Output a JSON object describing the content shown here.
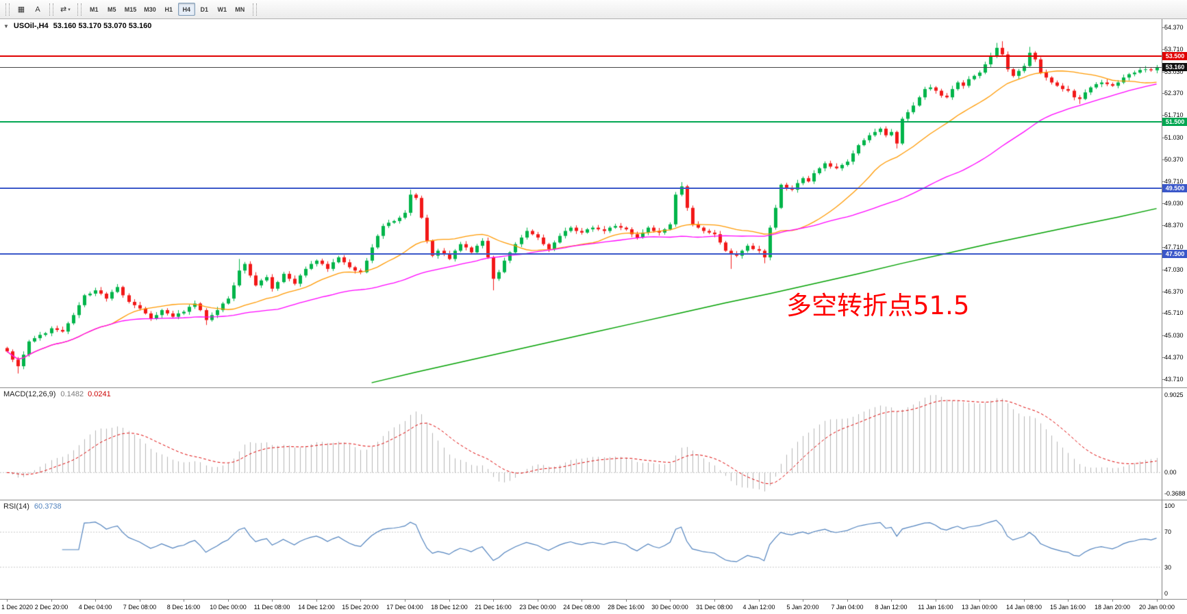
{
  "toolbar": {
    "tool_buttons": [
      {
        "glyph": "▦"
      },
      {
        "glyph": "A"
      },
      {
        "glyph": "⇄",
        "caret": "▾"
      }
    ],
    "timeframes": [
      "M1",
      "M5",
      "M15",
      "M30",
      "H1",
      "H4",
      "D1",
      "W1",
      "MN"
    ],
    "active_timeframe": "H4"
  },
  "chart_title": {
    "marker": "▼",
    "symbol": "USOil-,H4",
    "ohlc": "53.160 53.170 53.070 53.160"
  },
  "annotation": {
    "text": "多空转折点51.5",
    "color": "#ff0000"
  },
  "chart_data": {
    "type": "candlestick",
    "symbol": "USOil",
    "timeframe": "H4",
    "date_range": "1 Dec 2020 - 20 Jan 2021",
    "current_ohlc": {
      "open": 53.16,
      "high": 53.17,
      "low": 53.07,
      "close": 53.16
    },
    "price_axis_labels": [
      "54.370",
      "53.710",
      "53.030",
      "52.370",
      "51.710",
      "51.030",
      "50.370",
      "49.710",
      "49.030",
      "48.370",
      "47.710",
      "47.030",
      "46.370",
      "45.710",
      "45.030",
      "44.370",
      "43.710"
    ],
    "price_axis_values": [
      54.37,
      53.71,
      53.03,
      52.37,
      51.71,
      51.03,
      50.37,
      49.71,
      49.03,
      48.37,
      47.71,
      47.03,
      46.37,
      45.71,
      45.03,
      44.37,
      43.71
    ],
    "time_axis_labels": [
      "1 Dec 2020",
      "2 Dec 20:00",
      "4 Dec 04:00",
      "7 Dec 08:00",
      "8 Dec 16:00",
      "10 Dec 00:00",
      "11 Dec 08:00",
      "14 Dec 12:00",
      "15 Dec 20:00",
      "17 Dec 04:00",
      "18 Dec 12:00",
      "21 Dec 16:00",
      "23 Dec 00:00",
      "24 Dec 08:00",
      "28 Dec 16:00",
      "30 Dec 00:00",
      "31 Dec 08:00",
      "4 Jan 12:00",
      "5 Jan 20:00",
      "7 Jan 04:00",
      "8 Jan 12:00",
      "11 Jan 16:00",
      "13 Jan 00:00",
      "14 Jan 08:00",
      "15 Jan 16:00",
      "18 Jan 20:00",
      "20 Jan 00:00"
    ],
    "bars_per_time_label": 8,
    "first_open": 44.65,
    "closes": [
      44.55,
      44.3,
      44.1,
      44.45,
      44.85,
      44.95,
      45.05,
      45.1,
      45.25,
      45.2,
      45.15,
      45.4,
      45.65,
      45.95,
      46.25,
      46.3,
      46.4,
      46.3,
      46.15,
      46.35,
      46.5,
      46.25,
      46.05,
      45.95,
      45.85,
      45.7,
      45.55,
      45.65,
      45.8,
      45.7,
      45.6,
      45.7,
      45.75,
      45.9,
      46.0,
      45.8,
      45.5,
      45.65,
      45.8,
      46.0,
      46.15,
      46.55,
      47.0,
      47.2,
      46.85,
      46.55,
      46.7,
      46.8,
      46.45,
      46.65,
      46.9,
      46.75,
      46.6,
      46.85,
      47.05,
      47.2,
      47.3,
      47.2,
      47.05,
      47.25,
      47.4,
      47.25,
      47.1,
      47.0,
      46.95,
      47.3,
      47.7,
      48.05,
      48.35,
      48.45,
      48.5,
      48.6,
      48.75,
      49.3,
      49.2,
      48.6,
      47.9,
      47.45,
      47.6,
      47.5,
      47.35,
      47.6,
      47.8,
      47.7,
      47.55,
      47.75,
      47.9,
      47.4,
      46.75,
      46.95,
      47.3,
      47.55,
      47.8,
      48.0,
      48.2,
      48.1,
      48.0,
      47.8,
      47.65,
      47.85,
      48.05,
      48.2,
      48.3,
      48.2,
      48.15,
      48.25,
      48.3,
      48.25,
      48.2,
      48.3,
      48.35,
      48.3,
      48.25,
      48.1,
      48.0,
      48.15,
      48.3,
      48.2,
      48.15,
      48.25,
      48.4,
      49.3,
      49.55,
      48.9,
      48.4,
      48.3,
      48.2,
      48.15,
      48.1,
      47.85,
      47.6,
      47.5,
      47.45,
      47.6,
      47.75,
      47.65,
      47.6,
      47.4,
      48.3,
      48.9,
      49.6,
      49.5,
      49.45,
      49.65,
      49.8,
      49.7,
      49.95,
      50.1,
      50.25,
      50.15,
      50.1,
      50.2,
      50.3,
      50.55,
      50.8,
      50.95,
      51.1,
      51.2,
      51.3,
      51.1,
      51.2,
      50.85,
      51.6,
      51.8,
      52.0,
      52.25,
      52.5,
      52.55,
      52.45,
      52.3,
      52.25,
      52.5,
      52.7,
      52.6,
      52.8,
      52.9,
      53.0,
      53.25,
      53.5,
      53.75,
      53.55,
      53.1,
      52.9,
      53.05,
      53.2,
      53.6,
      53.4,
      53.0,
      52.85,
      52.7,
      52.6,
      52.5,
      52.45,
      52.25,
      52.2,
      52.4,
      52.55,
      52.65,
      52.7,
      52.65,
      52.6,
      52.7,
      52.85,
      52.95,
      53.0,
      53.08,
      53.1,
      53.07,
      53.16
    ],
    "wick_high_overrides": {
      "42": 47.35,
      "73": 49.45,
      "122": 49.68,
      "179": 53.9,
      "180": 53.95,
      "185": 53.78
    },
    "wick_low_overrides": {
      "2": 43.88,
      "36": 45.35,
      "88": 46.4,
      "131": 47.05,
      "137": 47.22,
      "161": 50.7,
      "194": 52.05
    },
    "candle_up_color": "#00b44a",
    "candle_down_color": "#f21818",
    "moving_averages": {
      "fast": {
        "period": 20,
        "color": "#ff9900"
      },
      "mid": {
        "period": 50,
        "color": "#ff00ff"
      },
      "slow": {
        "color": "#00a000",
        "points": [
          [
            66,
            43.6
          ],
          [
            74,
            43.92
          ],
          [
            82,
            44.22
          ],
          [
            90,
            44.52
          ],
          [
            98,
            44.82
          ],
          [
            106,
            45.12
          ],
          [
            114,
            45.42
          ],
          [
            122,
            45.72
          ],
          [
            130,
            46.02
          ],
          [
            138,
            46.3
          ],
          [
            146,
            46.6
          ],
          [
            154,
            46.9
          ],
          [
            162,
            47.22
          ],
          [
            170,
            47.52
          ],
          [
            178,
            47.82
          ],
          [
            186,
            48.1
          ],
          [
            194,
            48.38
          ],
          [
            201,
            48.62
          ],
          [
            208,
            48.88
          ]
        ]
      }
    },
    "levels": [
      {
        "price": 53.5,
        "label": "53.500",
        "color": "#e00000",
        "width": 2
      },
      {
        "price": 51.5,
        "label": "51.500",
        "color": "#00a651",
        "width": 2
      },
      {
        "price": 49.5,
        "label": "49.500",
        "color": "#3a57c9",
        "width": 2
      },
      {
        "price": 47.5,
        "label": "47.500",
        "color": "#3a57c9",
        "width": 2
      }
    ],
    "current_price": {
      "value": 53.16,
      "label": "53.160",
      "line_color": "#444444",
      "badge_color": "#111111"
    }
  },
  "macd": {
    "name": "MACD(12,26,9)",
    "value_main": "0.1482",
    "value_signal": "0.0241",
    "params": {
      "fast": 12,
      "slow": 26,
      "signal": 9
    },
    "axis_labels": [
      "0.9025",
      "0.00",
      "-0.3688"
    ],
    "histogram_color": "#b4b4b4",
    "signal_color": "#dd0000"
  },
  "rsi": {
    "name": "RSI(14)",
    "value": "60.3738",
    "period": 14,
    "axis_labels": [
      "100",
      "70",
      "30",
      "0"
    ],
    "axis_values": [
      100,
      70,
      30,
      0
    ],
    "level_lines": [
      70,
      30
    ],
    "line_color": "#4f81bd"
  }
}
